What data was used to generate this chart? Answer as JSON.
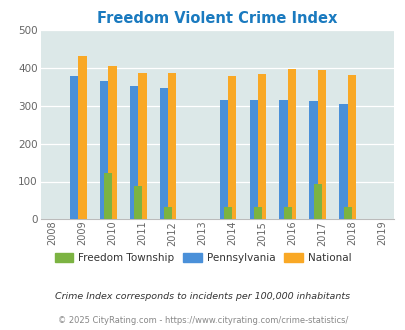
{
  "title": "Freedom Violent Crime Index",
  "years": [
    2009,
    2010,
    2011,
    2012,
    2014,
    2015,
    2016,
    2017,
    2018
  ],
  "freedom_township": [
    0,
    122,
    89,
    32,
    32,
    32,
    32,
    93,
    32
  ],
  "pennsylvania": [
    378,
    365,
    352,
    347,
    314,
    314,
    314,
    311,
    305
  ],
  "national": [
    430,
    405,
    387,
    387,
    377,
    383,
    397,
    393,
    380
  ],
  "color_freedom": "#7cb342",
  "color_pennsylvania": "#4a90d9",
  "color_national": "#f9a825",
  "bg_color": "#dce8e8",
  "title_color": "#1a7abf",
  "ylim": [
    0,
    500
  ],
  "yticks": [
    0,
    100,
    200,
    300,
    400,
    500
  ],
  "tick_color": "#666666",
  "legend_labels": [
    "Freedom Township",
    "Pennsylvania",
    "National"
  ],
  "footnote1": "Crime Index corresponds to incidents per 100,000 inhabitants",
  "footnote2": "© 2025 CityRating.com - https://www.cityrating.com/crime-statistics/",
  "bar_width": 0.28,
  "x_tick_labels": [
    "2008",
    "2009",
    "2010",
    "2011",
    "2012",
    "2013",
    "2014",
    "2015",
    "2016",
    "2017",
    "2018",
    "2019"
  ],
  "x_tick_positions": [
    2008,
    2009,
    2010,
    2011,
    2012,
    2013,
    2014,
    2015,
    2016,
    2017,
    2018,
    2019
  ]
}
